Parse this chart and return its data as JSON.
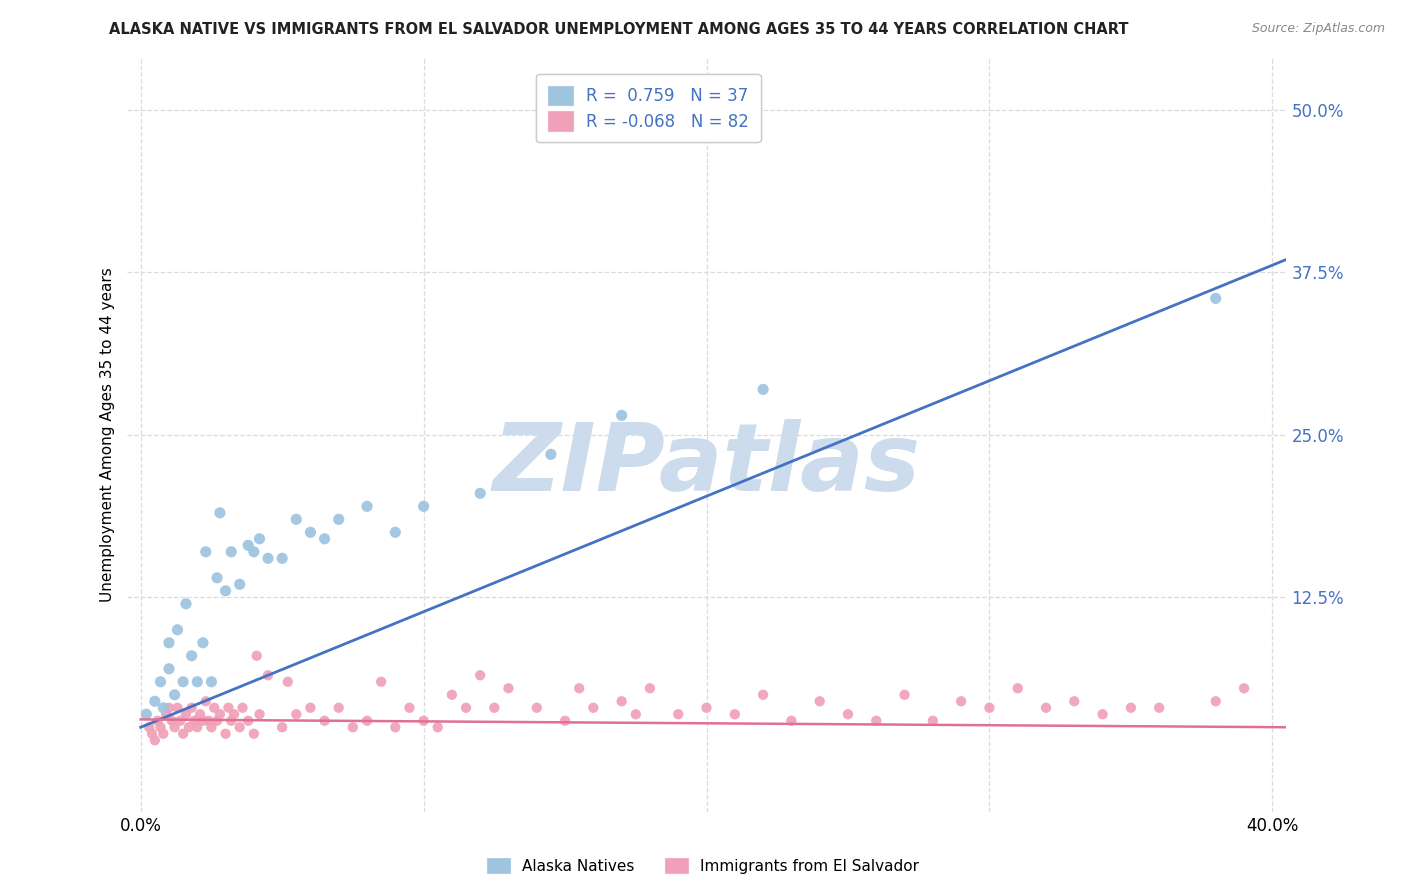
{
  "title": "ALASKA NATIVE VS IMMIGRANTS FROM EL SALVADOR UNEMPLOYMENT AMONG AGES 35 TO 44 YEARS CORRELATION CHART",
  "source": "Source: ZipAtlas.com",
  "ylabel": "Unemployment Among Ages 35 to 44 years",
  "xtick_vals": [
    0.0,
    0.1,
    0.2,
    0.3,
    0.4
  ],
  "xtick_labels": [
    "0.0%",
    "",
    "",
    "",
    "40.0%"
  ],
  "ytick_vals": [
    0.125,
    0.25,
    0.375,
    0.5
  ],
  "ytick_labels": [
    "12.5%",
    "25.0%",
    "37.5%",
    "50.0%"
  ],
  "xlim": [
    -0.005,
    0.405
  ],
  "ylim": [
    -0.04,
    0.54
  ],
  "blue_R": 0.759,
  "blue_N": 37,
  "pink_R": -0.068,
  "pink_N": 82,
  "blue_line_color": "#4472c4",
  "pink_line_color": "#e07090",
  "blue_dot_color": "#9ec4e0",
  "pink_dot_color": "#f0a0b8",
  "legend_label_blue": "Alaska Natives",
  "legend_label_pink": "Immigrants from El Salvador",
  "watermark": "ZIPatlas",
  "watermark_color": "#ccdcec",
  "title_color": "#222222",
  "source_color": "#888888",
  "grid_color": "#d8dce0",
  "blue_x": [
    0.002,
    0.005,
    0.007,
    0.008,
    0.01,
    0.01,
    0.012,
    0.013,
    0.015,
    0.016,
    0.018,
    0.02,
    0.022,
    0.023,
    0.025,
    0.027,
    0.028,
    0.03,
    0.032,
    0.035,
    0.038,
    0.04,
    0.042,
    0.045,
    0.05,
    0.055,
    0.06,
    0.065,
    0.07,
    0.08,
    0.09,
    0.1,
    0.12,
    0.145,
    0.17,
    0.22,
    0.38
  ],
  "blue_y": [
    0.035,
    0.045,
    0.06,
    0.04,
    0.07,
    0.09,
    0.05,
    0.1,
    0.06,
    0.12,
    0.08,
    0.06,
    0.09,
    0.16,
    0.06,
    0.14,
    0.19,
    0.13,
    0.16,
    0.135,
    0.165,
    0.16,
    0.17,
    0.155,
    0.155,
    0.185,
    0.175,
    0.17,
    0.185,
    0.195,
    0.175,
    0.195,
    0.205,
    0.235,
    0.265,
    0.285,
    0.355
  ],
  "pink_x": [
    0.003,
    0.004,
    0.005,
    0.006,
    0.007,
    0.008,
    0.009,
    0.01,
    0.011,
    0.012,
    0.013,
    0.014,
    0.015,
    0.016,
    0.017,
    0.018,
    0.019,
    0.02,
    0.021,
    0.022,
    0.023,
    0.024,
    0.025,
    0.026,
    0.027,
    0.028,
    0.03,
    0.031,
    0.032,
    0.033,
    0.035,
    0.036,
    0.038,
    0.04,
    0.041,
    0.042,
    0.045,
    0.05,
    0.052,
    0.055,
    0.06,
    0.065,
    0.07,
    0.075,
    0.08,
    0.085,
    0.09,
    0.095,
    0.1,
    0.105,
    0.11,
    0.115,
    0.12,
    0.125,
    0.13,
    0.14,
    0.15,
    0.155,
    0.16,
    0.17,
    0.175,
    0.18,
    0.19,
    0.2,
    0.21,
    0.22,
    0.23,
    0.24,
    0.25,
    0.26,
    0.27,
    0.28,
    0.29,
    0.3,
    0.31,
    0.32,
    0.33,
    0.34,
    0.35,
    0.36,
    0.38,
    0.39
  ],
  "pink_y": [
    0.025,
    0.02,
    0.015,
    0.03,
    0.025,
    0.02,
    0.035,
    0.04,
    0.03,
    0.025,
    0.04,
    0.03,
    0.02,
    0.035,
    0.025,
    0.04,
    0.03,
    0.025,
    0.035,
    0.03,
    0.045,
    0.03,
    0.025,
    0.04,
    0.03,
    0.035,
    0.02,
    0.04,
    0.03,
    0.035,
    0.025,
    0.04,
    0.03,
    0.02,
    0.08,
    0.035,
    0.065,
    0.025,
    0.06,
    0.035,
    0.04,
    0.03,
    0.04,
    0.025,
    0.03,
    0.06,
    0.025,
    0.04,
    0.03,
    0.025,
    0.05,
    0.04,
    0.065,
    0.04,
    0.055,
    0.04,
    0.03,
    0.055,
    0.04,
    0.045,
    0.035,
    0.055,
    0.035,
    0.04,
    0.035,
    0.05,
    0.03,
    0.045,
    0.035,
    0.03,
    0.05,
    0.03,
    0.045,
    0.04,
    0.055,
    0.04,
    0.045,
    0.035,
    0.04,
    0.04,
    0.045,
    0.055
  ],
  "blue_line_start_x": 0.0,
  "blue_line_end_x": 0.405,
  "blue_line_start_y": 0.025,
  "blue_line_end_y": 0.385,
  "pink_line_start_x": 0.0,
  "pink_line_end_x": 0.405,
  "pink_line_start_y": 0.031,
  "pink_line_end_y": 0.025
}
